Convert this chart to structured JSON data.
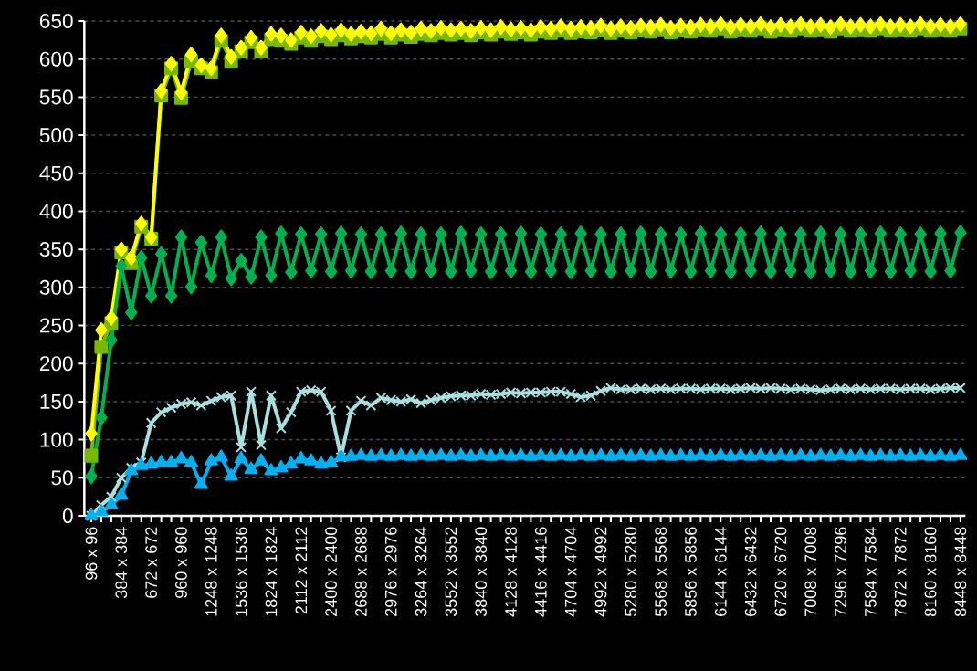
{
  "chart_data": {
    "type": "line",
    "categories": [
      "96 x 96",
      null,
      null,
      "384 x 384",
      null,
      null,
      "672 x 672",
      null,
      null,
      "960 x 960",
      null,
      null,
      "1248 x 1248",
      null,
      null,
      "1536 x 1536",
      null,
      null,
      "1824 x 1824",
      null,
      null,
      "2112 x 2112",
      null,
      null,
      "2400 x 2400",
      null,
      null,
      "2688 x 2688",
      null,
      null,
      "2976 x 2976",
      null,
      null,
      "3264 x 3264",
      null,
      null,
      "3552 x 3552",
      null,
      null,
      "3840 x 3840",
      null,
      null,
      "4128 x 4128",
      null,
      null,
      "4416 x 4416",
      null,
      null,
      "4704 x 4704",
      null,
      null,
      "4992 x 4992",
      null,
      null,
      "5280 x 5280",
      null,
      null,
      "5568 x 5568",
      null,
      null,
      "5856 x 5856",
      null,
      null,
      "6144 x 6144",
      null,
      null,
      "6432 x 6432",
      null,
      null,
      "6720 x 6720",
      null,
      null,
      "7008 x 7008",
      null,
      null,
      "7296 x 7296",
      null,
      null,
      "7584 x 7584",
      null,
      null,
      "7872 x 7872",
      null,
      null,
      "8160 x 8160",
      null,
      null,
      "8448 x 8448"
    ],
    "series": [
      {
        "color": "#76b900",
        "marker": "square",
        "values": [
          79,
          222,
          253,
          346,
          332,
          380,
          364,
          552,
          588,
          549,
          597,
          588,
          583,
          624,
          597,
          610,
          622,
          610,
          626,
          624,
          620,
          628,
          624,
          630,
          626,
          631,
          627,
          630,
          628,
          633,
          628,
          632,
          629,
          633,
          631,
          634,
          632,
          634,
          631,
          635,
          632,
          636,
          633,
          635,
          632,
          636,
          634,
          637,
          634,
          636,
          635,
          638,
          634,
          637,
          635,
          638,
          636,
          639,
          635,
          638,
          636,
          639,
          637,
          640,
          636,
          639,
          637,
          640,
          636,
          639,
          637,
          640,
          637,
          639,
          636,
          640,
          637,
          639,
          637,
          640,
          637,
          639,
          637,
          640,
          637,
          639,
          637,
          640
        ]
      },
      {
        "color": "#ffff00",
        "marker": "diamond",
        "values": [
          108,
          244,
          260,
          350,
          339,
          384,
          366,
          558,
          594,
          556,
          606,
          592,
          588,
          631,
          603,
          615,
          628,
          615,
          633,
          631,
          625,
          635,
          630,
          637,
          632,
          638,
          633,
          636,
          634,
          640,
          634,
          638,
          635,
          640,
          637,
          641,
          638,
          640,
          637,
          641,
          638,
          642,
          639,
          641,
          638,
          642,
          640,
          643,
          640,
          642,
          641,
          644,
          640,
          643,
          641,
          644,
          642,
          645,
          641,
          644,
          642,
          645,
          643,
          646,
          642,
          645,
          643,
          646,
          642,
          645,
          643,
          646,
          643,
          645,
          642,
          646,
          643,
          645,
          643,
          646,
          643,
          645,
          643,
          646,
          643,
          645,
          643,
          646
        ]
      },
      {
        "color": "#00b050",
        "marker": "diamond",
        "values": [
          52,
          129,
          231,
          328,
          267,
          339,
          289,
          344,
          289,
          366,
          301,
          359,
          316,
          366,
          312,
          335,
          314,
          366,
          316,
          371,
          320,
          370,
          322,
          370,
          321,
          371,
          322,
          370,
          321,
          370,
          322,
          371,
          321,
          370,
          322,
          370,
          321,
          371,
          322,
          370,
          321,
          370,
          322,
          371,
          321,
          370,
          322,
          370,
          321,
          371,
          322,
          370,
          321,
          370,
          322,
          371,
          321,
          370,
          322,
          370,
          321,
          371,
          322,
          370,
          321,
          370,
          322,
          371,
          321,
          370,
          322,
          370,
          321,
          371,
          322,
          370,
          321,
          370,
          322,
          371,
          321,
          370,
          322,
          370,
          321,
          371,
          322,
          372
        ]
      },
      {
        "color": "#a8e0e0",
        "marker": "cross",
        "values": [
          0,
          14,
          25,
          50,
          63,
          70,
          122,
          136,
          142,
          147,
          149,
          145,
          151,
          156,
          158,
          90,
          163,
          93,
          158,
          115,
          136,
          163,
          165,
          163,
          138,
          77,
          138,
          151,
          145,
          155,
          152,
          150,
          153,
          148,
          152,
          155,
          157,
          158,
          158,
          160,
          159,
          160,
          162,
          161,
          162,
          162,
          163,
          163,
          160,
          156,
          158,
          164,
          168,
          166,
          166,
          167,
          166,
          167,
          166,
          167,
          167,
          166,
          167,
          167,
          166,
          167,
          168,
          167,
          168,
          167,
          166,
          167,
          166,
          165,
          166,
          167,
          166,
          167,
          166,
          167,
          167,
          166,
          167,
          167,
          166,
          167,
          168,
          168
        ]
      },
      {
        "color": "#00b0f0",
        "marker": "triangle",
        "values": [
          0,
          5,
          14,
          27,
          59,
          66,
          68,
          70,
          70,
          75,
          70,
          41,
          72,
          77,
          52,
          75,
          61,
          72,
          59,
          63,
          68,
          75,
          72,
          68,
          70,
          77,
          78,
          79,
          78,
          79,
          78,
          79,
          78,
          79,
          78,
          79,
          78,
          79,
          78,
          79,
          78,
          79,
          78,
          79,
          78,
          79,
          78,
          79,
          78,
          79,
          78,
          79,
          78,
          79,
          78,
          79,
          78,
          79,
          78,
          79,
          78,
          79,
          78,
          79,
          78,
          79,
          78,
          79,
          78,
          79,
          78,
          79,
          78,
          79,
          78,
          79,
          78,
          79,
          78,
          79,
          78,
          79,
          78,
          79,
          78,
          79,
          78,
          79
        ]
      }
    ],
    "ylim": [
      0,
      650
    ],
    "yticks": [
      0,
      50,
      100,
      150,
      200,
      250,
      300,
      350,
      400,
      450,
      500,
      550,
      600,
      650
    ],
    "grid": "y",
    "line_style": "solid"
  }
}
